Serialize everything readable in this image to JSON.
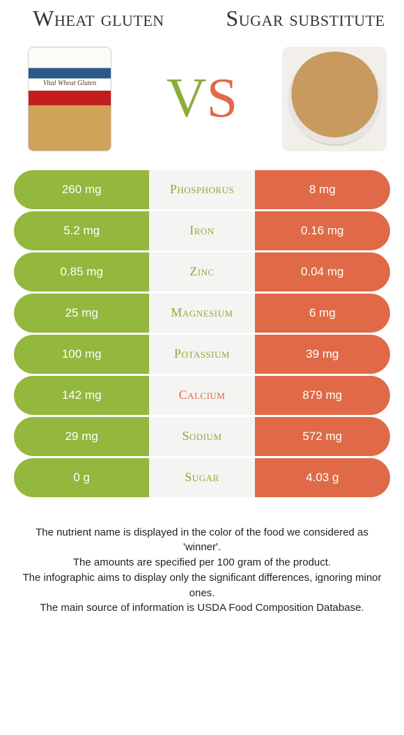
{
  "titles": {
    "left": "Wheat gluten",
    "right": "Sugar substitute"
  },
  "vs": {
    "v": "V",
    "s": "S"
  },
  "colors": {
    "green": "#94b73e",
    "orange": "#e06a47",
    "mid_bg": "#f4f4f2"
  },
  "rows": [
    {
      "label": "Phosphorus",
      "left": "260 mg",
      "right": "8 mg",
      "winner": "left"
    },
    {
      "label": "Iron",
      "left": "5.2 mg",
      "right": "0.16 mg",
      "winner": "left"
    },
    {
      "label": "Zinc",
      "left": "0.85 mg",
      "right": "0.04 mg",
      "winner": "left"
    },
    {
      "label": "Magnesium",
      "left": "25 mg",
      "right": "6 mg",
      "winner": "left"
    },
    {
      "label": "Potassium",
      "left": "100 mg",
      "right": "39 mg",
      "winner": "left"
    },
    {
      "label": "Calcium",
      "left": "142 mg",
      "right": "879 mg",
      "winner": "right"
    },
    {
      "label": "Sodium",
      "left": "29 mg",
      "right": "572 mg",
      "winner": "left"
    },
    {
      "label": "Sugar",
      "left": "0 g",
      "right": "4.03 g",
      "winner": "left"
    }
  ],
  "caption": {
    "l1": "The nutrient name is displayed in the color of the food we considered as 'winner'.",
    "l2": "The amounts are specified per 100 gram of the product.",
    "l3": "The infographic aims to display only the significant differences, ignoring minor ones.",
    "l4": "The main source of information is USDA Food Composition Database."
  }
}
